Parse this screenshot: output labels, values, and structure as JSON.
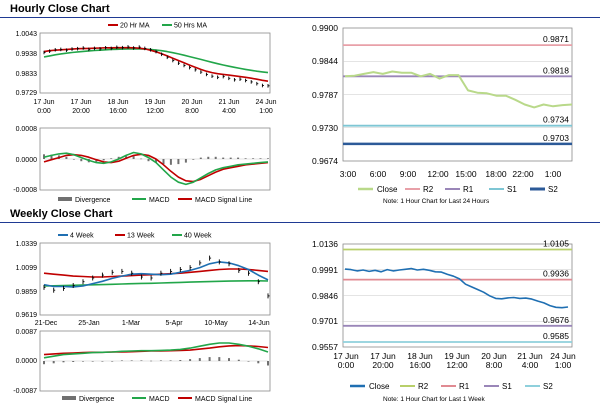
{
  "sections": {
    "hourly_title": "Hourly Close Chart",
    "weekly_title": "Weekly Close Chart"
  },
  "colors": {
    "ma_short": "#c00000",
    "ma_long": "#22a64a",
    "price": "#000000",
    "macd": "#22a64a",
    "signal": "#c00000",
    "divergence": "#707070",
    "close_light": "#b9d98a",
    "close_dark": "#1f6fb2",
    "r2": "#e8a0a8",
    "r1": "#9a86b8",
    "s1": "#7ec6d4",
    "s2": "#2c5a98",
    "r2_weekly": "#b8cf6a",
    "r1_weekly": "#e08a92",
    "s1_weekly": "#9a86b8",
    "s2_weekly": "#8fd0dc",
    "grid": "#c8c8c8",
    "rule": "#1f3a93",
    "frame": "#8a8a8a"
  },
  "chart_data": [
    {
      "id": "hourly_price",
      "type": "line",
      "legend": [
        "20 Hr MA",
        "50 Hrs MA"
      ],
      "ylim": [
        0.9729,
        1.0043
      ],
      "yticks": [
        "1.0043",
        "0.9938",
        "0.9833",
        "0.9729"
      ],
      "xticks": [
        [
          "17 Jun",
          "0:00"
        ],
        [
          "17 Jun",
          "20:00"
        ],
        [
          "18 Jun",
          "16:00"
        ],
        [
          "19 Jun",
          "12:00"
        ],
        [
          "20 Jun",
          "8:00"
        ],
        [
          "21 Jun",
          "4:00"
        ],
        [
          "24 Jun",
          "1:00"
        ]
      ],
      "series": [
        {
          "name": "Price",
          "kind": "bars",
          "values": [
            0.9945,
            0.9952,
            0.996,
            0.9962,
            0.9958,
            0.9964,
            0.9966,
            0.997,
            0.9962,
            0.9968,
            0.9965,
            0.9971,
            0.9968,
            0.9974,
            0.9972,
            0.9976,
            0.997,
            0.9975,
            0.9968,
            0.996,
            0.995,
            0.9935,
            0.9918,
            0.99,
            0.9885,
            0.9872,
            0.986,
            0.9848,
            0.9835,
            0.9822,
            0.9812,
            0.9806,
            0.981,
            0.98,
            0.9792,
            0.9795,
            0.9788,
            0.978,
            0.977,
            0.976,
            0.9758
          ]
        },
        {
          "name": "20 Hr MA",
          "values": [
            0.995,
            0.9955,
            0.9958,
            0.996,
            0.9962,
            0.9964,
            0.9966,
            0.9967,
            0.9968,
            0.9969,
            0.997,
            0.9971,
            0.9971,
            0.9972,
            0.9972,
            0.9972,
            0.9971,
            0.9969,
            0.9965,
            0.9958,
            0.9949,
            0.9938,
            0.9926,
            0.9913,
            0.99,
            0.9887,
            0.9874,
            0.9862,
            0.985,
            0.984,
            0.9832,
            0.9826,
            0.9822,
            0.9818,
            0.9814,
            0.981,
            0.9806,
            0.9801,
            0.9795,
            0.9789,
            0.9784
          ]
        },
        {
          "name": "50 Hrs MA",
          "values": [
            0.992,
            0.9926,
            0.9932,
            0.9937,
            0.9941,
            0.9945,
            0.9948,
            0.9951,
            0.9954,
            0.9956,
            0.9958,
            0.996,
            0.9962,
            0.9963,
            0.9964,
            0.9965,
            0.9965,
            0.9965,
            0.9964,
            0.9962,
            0.9959,
            0.9955,
            0.995,
            0.9944,
            0.9937,
            0.993,
            0.9922,
            0.9914,
            0.9906,
            0.9898,
            0.989,
            0.9882,
            0.9875,
            0.9868,
            0.9862,
            0.9856,
            0.985,
            0.9845,
            0.984,
            0.9836,
            0.9832
          ]
        }
      ]
    },
    {
      "id": "hourly_macd",
      "type": "line",
      "ylim": [
        -0.0008,
        0.0008
      ],
      "yticks": [
        "0.0008",
        "0.0000",
        "-0.0008"
      ],
      "legend": [
        "Divergence",
        "MACD",
        "MACD Signal Line"
      ],
      "series": [
        {
          "name": "MACD",
          "values": [
            5e-05,
            0.0001,
            0.00014,
            0.00016,
            0.00012,
            4e-05,
            -4e-05,
            -0.0001,
            -0.00012,
            -8e-05,
            0.0,
            0.0001,
            0.00018,
            0.00014,
            4e-05,
            -0.0001,
            -0.0003,
            -0.0005,
            -0.00064,
            -0.0007,
            -0.00064,
            -0.00052,
            -0.0004,
            -0.0003,
            -0.00024,
            -0.0002,
            -0.00016,
            -0.00014,
            -0.00012,
            -0.0001,
            -8e-05
          ]
        },
        {
          "name": "MACD Signal Line",
          "values": [
            -8e-05,
            -2e-05,
            4e-05,
            0.0001,
            0.00012,
            0.0001,
            5e-05,
            -2e-05,
            -8e-05,
            -0.0001,
            -6e-05,
            2e-05,
            0.0001,
            0.00013,
            0.0001,
            0.0,
            -0.00016,
            -0.00034,
            -0.0005,
            -0.0006,
            -0.00062,
            -0.00056,
            -0.00046,
            -0.00036,
            -0.00028,
            -0.00024,
            -0.0002,
            -0.00016,
            -0.00014,
            -0.00012,
            -0.0001
          ]
        },
        {
          "name": "Divergence",
          "values": [
            0.00013,
            0.00012,
            0.0001,
            6e-05,
            0.0,
            -6e-05,
            -9e-05,
            -8e-05,
            -4e-05,
            2e-05,
            6e-05,
            8e-05,
            8e-05,
            1e-05,
            -6e-05,
            -0.0001,
            -0.00014,
            -0.00016,
            -0.00014,
            -0.0001,
            -2e-05,
            4e-05,
            6e-05,
            6e-05,
            4e-05,
            4e-05,
            4e-05,
            2e-05,
            2e-05,
            2e-05,
            2e-05
          ]
        }
      ]
    },
    {
      "id": "hourly_levels",
      "type": "line",
      "ylim": [
        0.9674,
        0.99
      ],
      "yticks": [
        "0.9900",
        "0.9844",
        "0.9787",
        "0.9730",
        "0.9674"
      ],
      "xticks": [
        "3:00",
        "6:00",
        "9:00",
        "12:00",
        "15:00",
        "18:00",
        "22:00",
        "1:00"
      ],
      "levels": {
        "R2": 0.9871,
        "R1": 0.9818,
        "S1": 0.9734,
        "S2": 0.9703
      },
      "level_labels": {
        "R2": "0.9871",
        "R1": "0.9818",
        "S1": "0.9734",
        "S2": "0.9703"
      },
      "series": [
        {
          "name": "Close",
          "values": [
            0.9818,
            0.9819,
            0.9822,
            0.9825,
            0.9822,
            0.9826,
            0.9824,
            0.9824,
            0.9818,
            0.9822,
            0.9814,
            0.982,
            0.982,
            0.9794,
            0.979,
            0.9789,
            0.9785,
            0.9785,
            0.9778,
            0.977,
            0.9765,
            0.977,
            0.9767,
            0.9769,
            0.977
          ]
        }
      ],
      "legend": [
        "Close",
        "R2",
        "R1",
        "S1",
        "S2"
      ],
      "note": "Note: 1 Hour Chart for Last 24 Hours"
    },
    {
      "id": "weekly_price",
      "type": "line",
      "legend": [
        "4 Week",
        "13 Week",
        "40 Week"
      ],
      "ylim": [
        0.9619,
        1.0339
      ],
      "yticks": [
        "1.0339",
        "1.0099",
        "0.9859",
        "0.9619"
      ],
      "xticks": [
        "21-Dec",
        "25-Jan",
        "1-Mar",
        "5-Apr",
        "10-May",
        "14-Jun"
      ],
      "series": [
        {
          "name": "Price",
          "kind": "bars",
          "values": [
            0.989,
            0.986,
            0.988,
            0.991,
            0.995,
            0.999,
            1.002,
            1.005,
            1.006,
            1.004,
            1.0,
            0.999,
            1.004,
            1.006,
            1.008,
            1.01,
            1.015,
            1.02,
            1.016,
            1.014,
            1.007,
            1.004,
            0.995,
            0.98
          ]
        },
        {
          "name": "4 Week",
          "values": [
            0.992,
            0.99,
            0.99,
            0.9895,
            0.9905,
            0.993,
            0.9955,
            0.9985,
            1.001,
            1.003,
            1.0035,
            1.003,
            1.0025,
            1.003,
            1.005,
            1.007,
            1.01,
            1.014,
            1.016,
            1.015,
            1.012,
            1.008,
            1.002,
            0.997
          ]
        },
        {
          "name": "13 Week",
          "values": [
            1.004,
            1.003,
            1.002,
            1.001,
            1.0005,
            1.0,
            1.0,
            1.0005,
            1.001,
            1.0015,
            1.002,
            1.0025,
            1.003,
            1.0035,
            1.004,
            1.005,
            1.006,
            1.007,
            1.008,
            1.0085,
            1.0085,
            1.008,
            1.007,
            1.006
          ]
        },
        {
          "name": "40 Week",
          "values": [
            0.9905,
            0.9907,
            0.991,
            0.9912,
            0.9915,
            0.9918,
            0.992,
            0.9923,
            0.9926,
            0.9929,
            0.9932,
            0.9934,
            0.9937,
            0.994,
            0.9943,
            0.9946,
            0.9949,
            0.9952,
            0.9955,
            0.9957,
            0.9959,
            0.996,
            0.996,
            0.9958
          ]
        }
      ]
    },
    {
      "id": "weekly_macd",
      "type": "line",
      "ylim": [
        -0.0087,
        0.0087
      ],
      "yticks": [
        "0.0087",
        "0.0000",
        "-0.0087"
      ],
      "legend": [
        "Divergence",
        "MACD",
        "MACD Signal Line"
      ],
      "series": [
        {
          "name": "MACD",
          "values": [
            0.001,
            0.0015,
            0.002,
            0.0022,
            0.0024,
            0.0026,
            0.0027,
            0.0028,
            0.003,
            0.0031,
            0.0032,
            0.0032,
            0.0033,
            0.0034,
            0.0036,
            0.004,
            0.0046,
            0.0052,
            0.0056,
            0.0056,
            0.0052,
            0.0046,
            0.0038,
            0.0028
          ]
        },
        {
          "name": "MACD Signal Line",
          "values": [
            0.002,
            0.0022,
            0.0024,
            0.0025,
            0.0026,
            0.0027,
            0.0027,
            0.0028,
            0.0028,
            0.0029,
            0.003,
            0.0031,
            0.0031,
            0.0032,
            0.0033,
            0.0034,
            0.0037,
            0.004,
            0.0044,
            0.0047,
            0.0048,
            0.0047,
            0.0045,
            0.0042
          ]
        },
        {
          "name": "Divergence",
          "values": [
            -0.001,
            -0.0007,
            -0.0004,
            -0.0003,
            -0.0002,
            -0.0001,
            0.0,
            0.0,
            0.0002,
            0.0002,
            0.0002,
            0.0001,
            0.0002,
            0.0002,
            0.0003,
            0.0006,
            0.0009,
            0.0012,
            0.0012,
            0.0009,
            0.0004,
            -0.0001,
            -0.0007,
            -0.0014
          ]
        }
      ]
    },
    {
      "id": "weekly_levels",
      "type": "line",
      "ylim": [
        0.9557,
        1.0136
      ],
      "yticks": [
        "1.0136",
        "0.9991",
        "0.9846",
        "0.9701",
        "0.9557"
      ],
      "xticks": [
        [
          "17 Jun",
          "0:00"
        ],
        [
          "17 Jun",
          "20:00"
        ],
        [
          "18 Jun",
          "16:00"
        ],
        [
          "19 Jun",
          "12:00"
        ],
        [
          "20 Jun",
          "8:00"
        ],
        [
          "21 Jun",
          "4:00"
        ],
        [
          "24 Jun",
          "1:00"
        ]
      ],
      "levels": {
        "R2": 1.0105,
        "R1": 0.9936,
        "S1": 0.9676,
        "S2": 0.9585
      },
      "level_labels": {
        "R2": "1.0105",
        "R1": "0.9936",
        "S1": "0.9676",
        "S2": "0.9585"
      },
      "series": [
        {
          "name": "Close",
          "values": [
            0.9995,
            0.9992,
            0.9985,
            0.999,
            0.9982,
            0.9988,
            0.998,
            0.9992,
            0.9985,
            0.999,
            0.9994,
            0.9998,
            0.999,
            0.9994,
            0.9988,
            0.998,
            0.9978,
            0.9965,
            0.9955,
            0.994,
            0.991,
            0.9895,
            0.988,
            0.9865,
            0.9845,
            0.983,
            0.9828,
            0.9833,
            0.9835,
            0.983,
            0.9832,
            0.9826,
            0.9815,
            0.9805,
            0.979,
            0.978,
            0.9778,
            0.9782
          ]
        }
      ],
      "legend": [
        "Close",
        "R2",
        "R1",
        "S1",
        "S2"
      ],
      "note": "Note: 1 Hour Chart for Last 1 Week"
    }
  ]
}
